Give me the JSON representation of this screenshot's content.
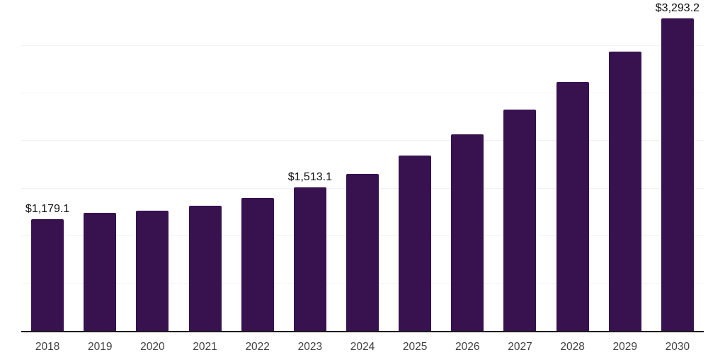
{
  "chart_data": {
    "type": "bar",
    "title": "",
    "xlabel": "",
    "ylabel": "",
    "categories": [
      "2018",
      "2019",
      "2020",
      "2021",
      "2022",
      "2023",
      "2024",
      "2025",
      "2026",
      "2027",
      "2028",
      "2029",
      "2030"
    ],
    "values": [
      1179.1,
      1245,
      1265,
      1315,
      1400,
      1513.1,
      1655,
      1845,
      2070,
      2330,
      2620,
      2940,
      3293.2
    ],
    "point_labels": [
      "$1,179.1",
      "",
      "",
      "",
      "",
      "$1,513.1",
      "",
      "",
      "",
      "",
      "",
      "",
      "$3,293.2"
    ],
    "ylim": [
      0,
      3500
    ],
    "gridline_step": 500,
    "grid": "horizontal",
    "legend": "none",
    "colors": {
      "bar": "#38114F",
      "gridline": "#f2f2f2",
      "axis": "#1a1a1a",
      "tick_label": "#404040",
      "data_label": "#111111",
      "background": "#ffffff"
    }
  }
}
